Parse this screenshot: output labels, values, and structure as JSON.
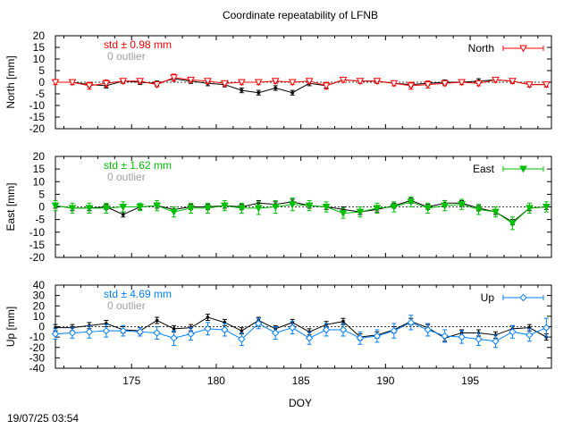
{
  "title": "Coordinate repeatability of LFNB",
  "timestamp": "19/07/25 03:54",
  "xlabel": "DOY",
  "colors": {
    "North": "#ff0000",
    "East": "#00c000",
    "Up": "#0080ff",
    "black": "#000000",
    "outlier": "#a0a0a0"
  },
  "chart_data": [
    {
      "type": "line",
      "name": "North",
      "ylabel": "North [mm]",
      "legend": "North",
      "legend_position": "top-right",
      "stats": "std ± 0.98 mm",
      "outlier": "0 outlier",
      "xlim": [
        170.5,
        199.8
      ],
      "ylim": [
        -20,
        20
      ],
      "xticks": [
        175,
        180,
        185,
        190,
        195
      ],
      "yticks": [
        -20,
        -15,
        -10,
        -5,
        0,
        5,
        10,
        15,
        20
      ],
      "x": [
        170.5,
        171.5,
        172.5,
        173.5,
        174.5,
        175.5,
        176.5,
        177.5,
        178.5,
        179.5,
        180.5,
        181.5,
        182.5,
        183.5,
        184.5,
        185.5,
        186.5,
        187.5,
        188.5,
        189.5,
        190.5,
        191.5,
        192.5,
        193.5,
        194.5,
        195.5,
        196.5,
        197.5,
        198.5,
        199.5
      ],
      "series": [
        {
          "name": "raw",
          "color": "black",
          "marker": "circle",
          "values": [
            0,
            0,
            -1,
            -1.5,
            0.5,
            0,
            -0.5,
            1.5,
            0.5,
            -0.5,
            -1,
            -3.5,
            -4.5,
            -2.5,
            -4.5,
            -0.5,
            -1.5,
            1,
            0.5,
            0.5,
            -0.5,
            -1,
            -0.5,
            0,
            0,
            0.5,
            1,
            0.5,
            -1,
            -1
          ],
          "errors": [
            1,
            1,
            1,
            1,
            1,
            1,
            1,
            1,
            1,
            1,
            1,
            1,
            1,
            1,
            1,
            1,
            1,
            1,
            1,
            1,
            1,
            1,
            1,
            1,
            1,
            1,
            1,
            1,
            1,
            1
          ]
        },
        {
          "name": "North",
          "color": "North",
          "marker": "triangle-down-open",
          "values": [
            0,
            0,
            -1.5,
            -0.5,
            0.5,
            0.5,
            -1,
            2,
            1,
            0.5,
            -0.5,
            0,
            0,
            0.5,
            0,
            0.5,
            -1.5,
            1,
            0.5,
            0.5,
            -0.5,
            -1.5,
            -1,
            -0.5,
            0,
            -0.5,
            1,
            0.5,
            -1,
            -1
          ],
          "errors": [
            1,
            1,
            1.5,
            1.5,
            1,
            1,
            1,
            1.5,
            1,
            1,
            1,
            1,
            1,
            1,
            1,
            1,
            1.5,
            1,
            1,
            1,
            1,
            1.5,
            1.5,
            1,
            1,
            1,
            1,
            1,
            1,
            1
          ]
        }
      ]
    },
    {
      "type": "line",
      "name": "East",
      "ylabel": "East [mm]",
      "legend": "East",
      "legend_position": "top-right",
      "stats": "std ± 1.62 mm",
      "outlier": "0 outlier",
      "xlim": [
        170.5,
        199.8
      ],
      "ylim": [
        -20,
        20
      ],
      "xticks": [
        175,
        180,
        185,
        190,
        195
      ],
      "yticks": [
        -20,
        -15,
        -10,
        -5,
        0,
        5,
        10,
        15,
        20
      ],
      "x": [
        170.5,
        171.5,
        172.5,
        173.5,
        174.5,
        175.5,
        176.5,
        177.5,
        178.5,
        179.5,
        180.5,
        181.5,
        182.5,
        183.5,
        184.5,
        185.5,
        186.5,
        187.5,
        188.5,
        189.5,
        190.5,
        191.5,
        192.5,
        193.5,
        194.5,
        195.5,
        196.5,
        197.5,
        198.5,
        199.5
      ],
      "series": [
        {
          "name": "raw",
          "color": "black",
          "marker": "circle",
          "values": [
            0.5,
            -0.5,
            -0.5,
            0,
            -3,
            0,
            0.5,
            -1,
            0,
            0,
            0.5,
            0,
            1.5,
            1,
            2,
            0.5,
            0,
            -1,
            -2,
            -1,
            0.5,
            2.5,
            0,
            1.5,
            1.5,
            -0.5,
            -2,
            -6,
            -0.5,
            0
          ],
          "errors": [
            1,
            1,
            1,
            1,
            1,
            1,
            1,
            1,
            1,
            1,
            1,
            1,
            1,
            1,
            1,
            1,
            1,
            1,
            1,
            1,
            1,
            1,
            1,
            1,
            1,
            1,
            1,
            1,
            1,
            1
          ]
        },
        {
          "name": "East",
          "color": "East",
          "marker": "triangle-down",
          "values": [
            0.5,
            -0.5,
            -0.5,
            -0.5,
            0,
            0,
            0.5,
            -2,
            -0.5,
            -0.5,
            0.5,
            -0.5,
            -0.5,
            0,
            1,
            0.5,
            0,
            -2.5,
            -2,
            -0.5,
            0,
            2,
            -0.5,
            0.5,
            1,
            -1,
            -2,
            -6.5,
            -0.5,
            0
          ],
          "errors": [
            2,
            2,
            2,
            2,
            2,
            1.5,
            2,
            2,
            2,
            2,
            2,
            2,
            2.5,
            2.5,
            2.5,
            2,
            2,
            2,
            2,
            2,
            2,
            2,
            2,
            2,
            2,
            2,
            2,
            2.5,
            2,
            2
          ]
        }
      ]
    },
    {
      "type": "line",
      "name": "Up",
      "ylabel": "Up [mm]",
      "legend": "Up",
      "legend_position": "top-right",
      "stats": "std ± 4.69 mm",
      "outlier": "0 outlier",
      "xlim": [
        170.5,
        199.8
      ],
      "ylim": [
        -40,
        40
      ],
      "xticks": [
        175,
        180,
        185,
        190,
        195
      ],
      "yticks": [
        -40,
        -30,
        -20,
        -10,
        0,
        10,
        20,
        30,
        40
      ],
      "x": [
        170.5,
        171.5,
        172.5,
        173.5,
        174.5,
        175.5,
        176.5,
        177.5,
        178.5,
        179.5,
        180.5,
        181.5,
        182.5,
        183.5,
        184.5,
        185.5,
        186.5,
        187.5,
        188.5,
        189.5,
        190.5,
        191.5,
        192.5,
        193.5,
        194.5,
        195.5,
        196.5,
        197.5,
        198.5,
        199.5
      ],
      "series": [
        {
          "name": "raw",
          "color": "black",
          "marker": "circle",
          "values": [
            -1,
            -1,
            1,
            3,
            -3,
            -4,
            6,
            -2,
            -1,
            9,
            4,
            -4,
            6,
            -2,
            4,
            -5,
            2,
            5,
            -10,
            -8,
            -3,
            5,
            -1,
            -11,
            -6,
            -6,
            -8,
            -2,
            -1,
            -10
          ],
          "errors": [
            3,
            3,
            3,
            3,
            3,
            3,
            3,
            3,
            3,
            3,
            3,
            3,
            3,
            3,
            3,
            3,
            3,
            3,
            3,
            3,
            3,
            3,
            3,
            3,
            3,
            3,
            3,
            3,
            3,
            3
          ]
        },
        {
          "name": "Up",
          "color": "Up",
          "marker": "diamond-open",
          "values": [
            -7,
            -6,
            -5,
            -4,
            -4,
            -5,
            -6,
            -11,
            -7,
            -2,
            -3,
            -12,
            3,
            -6,
            -1,
            -11,
            -3,
            -3,
            -11,
            -9,
            -4,
            4,
            -3,
            -9,
            -10,
            -12,
            -14,
            -5,
            -8,
            -1
          ],
          "errors": [
            5,
            5,
            6,
            6,
            5,
            4,
            6,
            7,
            6,
            6,
            6,
            6,
            5,
            6,
            6,
            6,
            6,
            6,
            6,
            6,
            7,
            7,
            6,
            6,
            6,
            6,
            6,
            6,
            6,
            9
          ]
        }
      ]
    }
  ]
}
